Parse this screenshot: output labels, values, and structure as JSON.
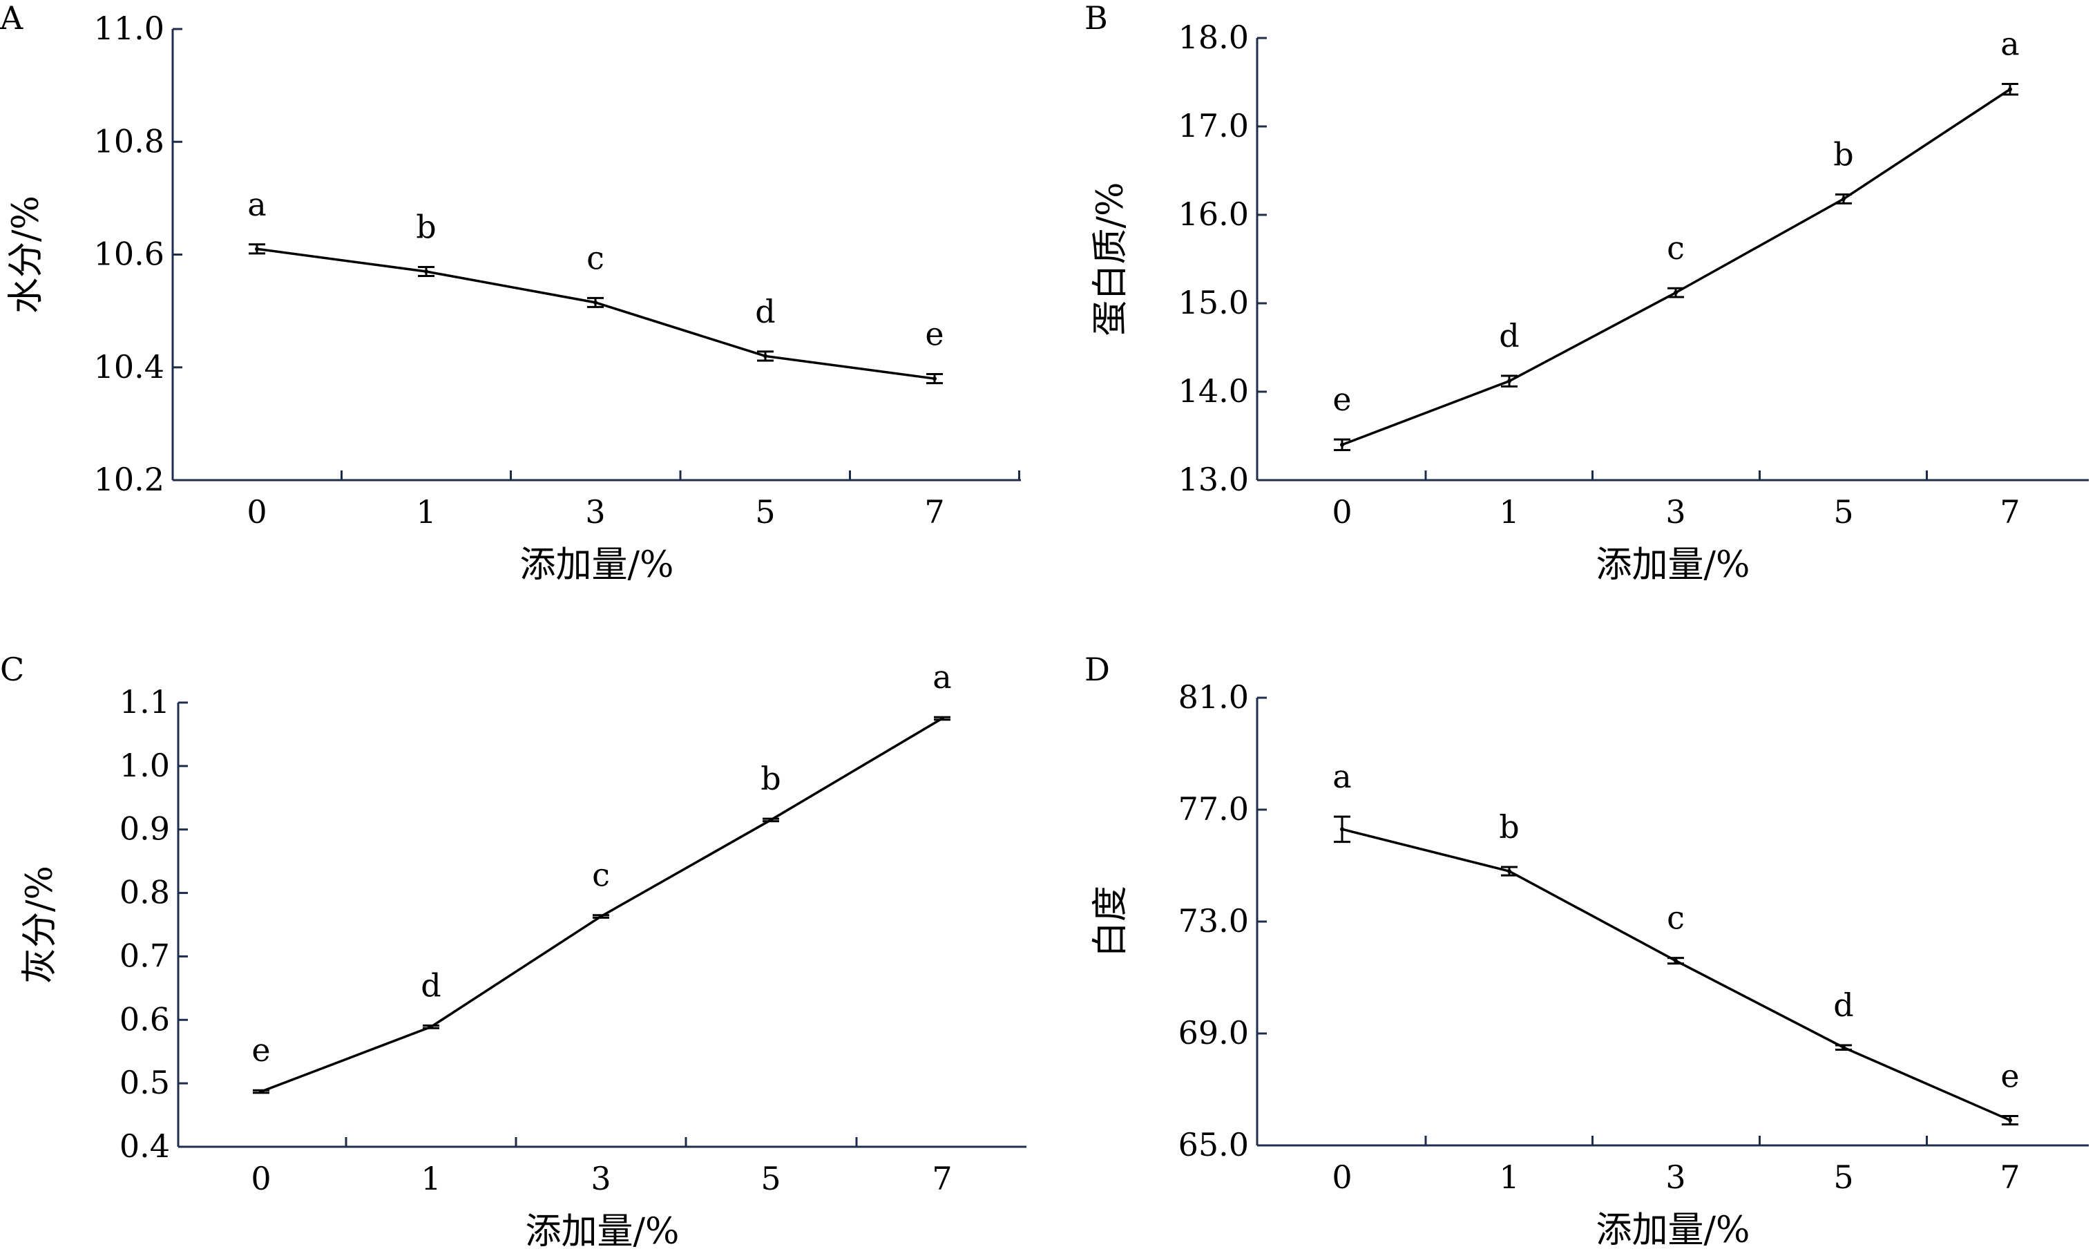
{
  "chart_data": [
    {
      "type": "line",
      "panel_label": "A",
      "categories": [
        "0",
        "1",
        "3",
        "5",
        "7"
      ],
      "series": [
        {
          "values": [
            10.61,
            10.57,
            10.515,
            10.42,
            10.38
          ]
        }
      ],
      "error": [
        0.008,
        0.008,
        0.008,
        0.008,
        0.008
      ],
      "significance": [
        "a",
        "b",
        "c",
        "d",
        "e"
      ],
      "xlabel": "添加量/%",
      "ylabel": "水分/%",
      "ylim": [
        10.2,
        11.0
      ],
      "yticks": [
        "10.2",
        "10.4",
        "10.6",
        "10.8",
        "11.0"
      ],
      "grid": false
    },
    {
      "type": "line",
      "panel_label": "B",
      "categories": [
        "0",
        "1",
        "3",
        "5",
        "7"
      ],
      "series": [
        {
          "values": [
            13.4,
            14.12,
            15.12,
            16.18,
            17.42
          ]
        }
      ],
      "error": [
        0.06,
        0.06,
        0.05,
        0.05,
        0.06
      ],
      "significance": [
        "e",
        "d",
        "c",
        "b",
        "a"
      ],
      "xlabel": "添加量/%",
      "ylabel": "蛋白质/%",
      "ylim": [
        13.0,
        18.0
      ],
      "yticks": [
        "13.0",
        "14.0",
        "15.0",
        "16.0",
        "17.0",
        "18.0"
      ],
      "grid": false
    },
    {
      "type": "line",
      "panel_label": "C",
      "categories": [
        "0",
        "1",
        "3",
        "5",
        "7"
      ],
      "series": [
        {
          "values": [
            0.487,
            0.589,
            0.763,
            0.915,
            1.075
          ]
        }
      ],
      "error": [
        0.002,
        0.002,
        0.002,
        0.002,
        0.002
      ],
      "significance": [
        "e",
        "d",
        "c",
        "b",
        "a"
      ],
      "xlabel": "添加量/%",
      "ylabel": "灰分/%",
      "ylim": [
        0.4,
        1.1
      ],
      "yticks": [
        "0.4",
        "0.5",
        "0.6",
        "0.7",
        "0.8",
        "0.9",
        "1.0",
        "1.1"
      ],
      "grid": false
    },
    {
      "type": "line",
      "panel_label": "D",
      "categories": [
        "0",
        "1",
        "3",
        "5",
        "7"
      ],
      "series": [
        {
          "values": [
            76.3,
            74.8,
            71.6,
            68.5,
            65.9
          ]
        }
      ],
      "error": [
        0.45,
        0.15,
        0.1,
        0.08,
        0.15
      ],
      "significance": [
        "a",
        "b",
        "c",
        "d",
        "e"
      ],
      "xlabel": "添加量/%",
      "ylabel": "白度",
      "ylim": [
        65.0,
        81.0
      ],
      "yticks": [
        "65.0",
        "69.0",
        "73.0",
        "77.0",
        "81.0"
      ],
      "grid": false
    }
  ]
}
